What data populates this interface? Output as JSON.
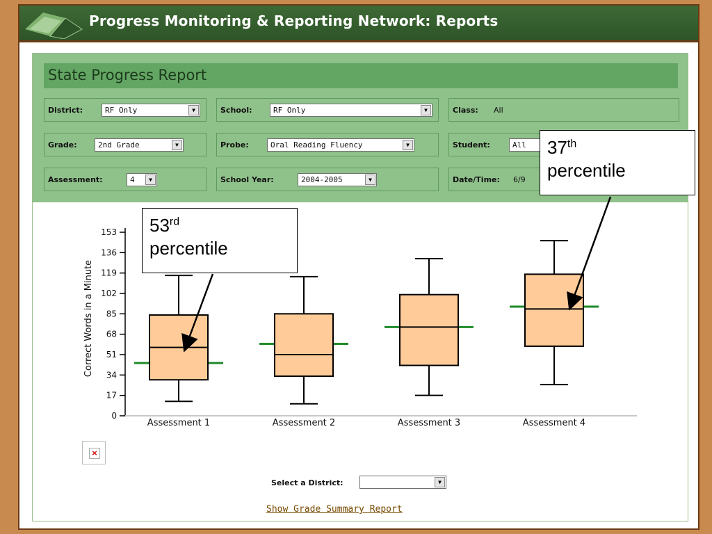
{
  "header": {
    "title": "Progress Monitoring & Reporting Network: Reports"
  },
  "report": {
    "title": "State Progress Report",
    "fields": {
      "district": {
        "label": "District:",
        "value": "RF Only"
      },
      "school": {
        "label": "School:",
        "value": "RF Only"
      },
      "class": {
        "label": "Class:",
        "value": "All"
      },
      "grade": {
        "label": "Grade:",
        "value": "2nd Grade"
      },
      "probe": {
        "label": "Probe:",
        "value": "Oral Reading Fluency"
      },
      "student": {
        "label": "Student:",
        "value": "All"
      },
      "assessment": {
        "label": "Assessment:",
        "value": "4"
      },
      "school_year": {
        "label": "School Year:",
        "value": "2004-2005"
      },
      "date_time": {
        "label": "Date/Time:",
        "value": "6/9"
      }
    }
  },
  "annotations": {
    "callout_1": {
      "number": "53",
      "suffix": "rd",
      "text": "percentile"
    },
    "callout_2": {
      "number": "37",
      "suffix": "th",
      "text": "percentile"
    }
  },
  "footer": {
    "select_district_label": "Select a District:",
    "select_district_value": "",
    "summary_link": "Show Grade Summary Report"
  },
  "colors": {
    "box_fill": "#ffcc99",
    "reference_line": "#1e8a2a",
    "header_green": "#3e6a35",
    "panel_green": "#8fc18a"
  },
  "icons": {
    "broken_image": "broken-image-icon",
    "dropdown": "chevron-down-icon"
  },
  "chart_data": {
    "type": "boxplot",
    "ylabel": "Correct Words in a Minute",
    "ylim": [
      0,
      153
    ],
    "yticks": [
      0,
      17,
      34,
      51,
      68,
      85,
      102,
      119,
      136,
      153
    ],
    "categories": [
      "Assessment 1",
      "Assessment 2",
      "Assessment 3",
      "Assessment 4"
    ],
    "boxes": [
      {
        "min": 12,
        "q1": 30,
        "median": 57,
        "q3": 84,
        "max": 117,
        "reference": 44
      },
      {
        "min": 10,
        "q1": 33,
        "median": 51,
        "q3": 85,
        "max": 116,
        "reference": 60
      },
      {
        "min": 17,
        "q1": 42,
        "median": 74,
        "q3": 101,
        "max": 131,
        "reference": 74
      },
      {
        "min": 26,
        "q1": 58,
        "median": 89,
        "q3": 118,
        "max": 146,
        "reference": 91
      }
    ]
  }
}
